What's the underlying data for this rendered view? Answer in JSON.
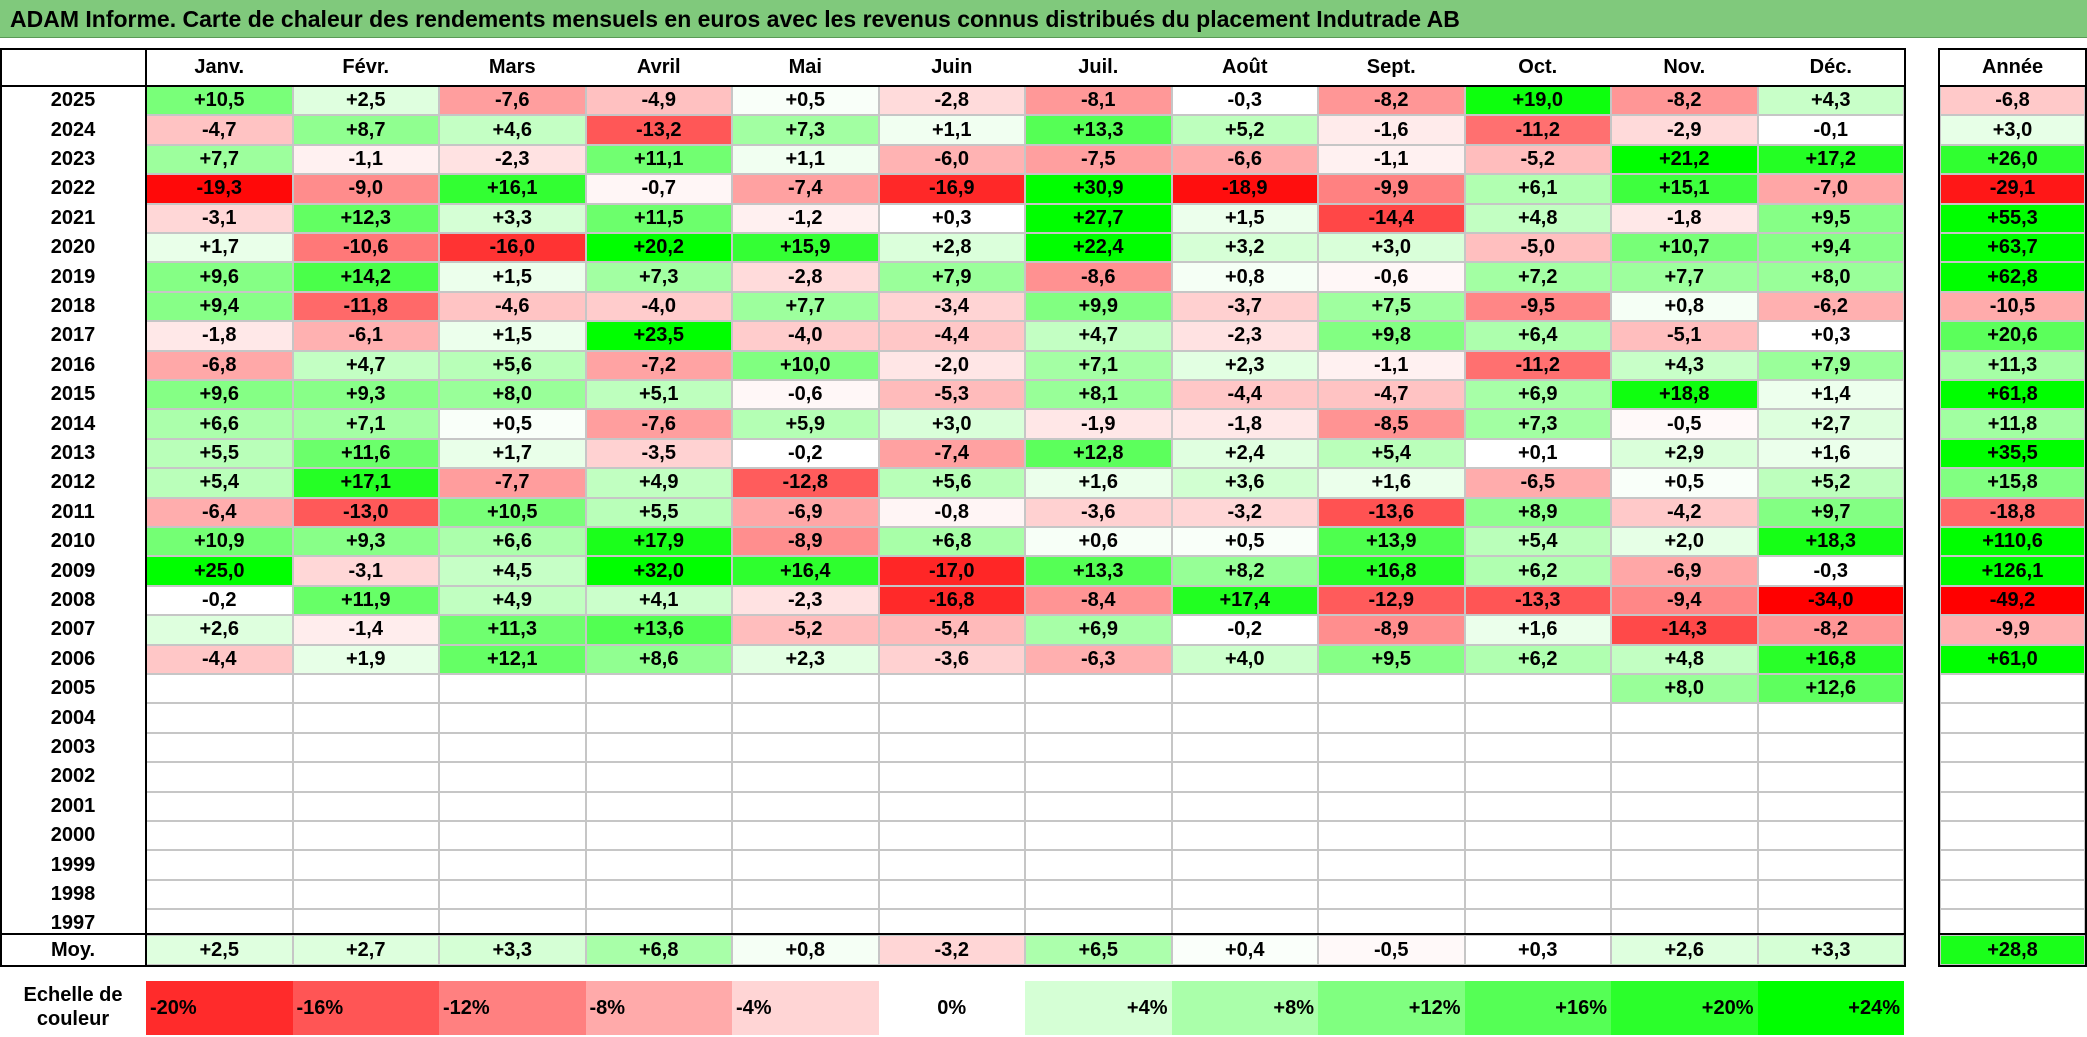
{
  "title": "ADAM Informe. Carte de chaleur des rendements mensuels en euros avec les revenus connus distribués du placement Indutrade AB",
  "chart_data": {
    "type": "heatmap",
    "title": "ADAM Informe. Carte de chaleur des rendements mensuels en euros avec les revenus connus distribués du placement Indutrade AB",
    "months": [
      "Janv.",
      "Févr.",
      "Mars",
      "Avril",
      "Mai",
      "Juin",
      "Juil.",
      "Août",
      "Sept.",
      "Oct.",
      "Nov.",
      "Déc."
    ],
    "annual_label": "Année",
    "rows": [
      {
        "year": "2025",
        "months": [
          "+10,5",
          "+2,5",
          "-7,6",
          "-4,9",
          "+0,5",
          "-2,8",
          "-8,1",
          "-0,3",
          "-8,2",
          "+19,0",
          "-8,2",
          "+4,3"
        ],
        "annual": "-6,8"
      },
      {
        "year": "2024",
        "months": [
          "-4,7",
          "+8,7",
          "+4,6",
          "-13,2",
          "+7,3",
          "+1,1",
          "+13,3",
          "+5,2",
          "-1,6",
          "-11,2",
          "-2,9",
          "-0,1"
        ],
        "annual": "+3,0"
      },
      {
        "year": "2023",
        "months": [
          "+7,7",
          "-1,1",
          "-2,3",
          "+11,1",
          "+1,1",
          "-6,0",
          "-7,5",
          "-6,6",
          "-1,1",
          "-5,2",
          "+21,2",
          "+17,2"
        ],
        "annual": "+26,0"
      },
      {
        "year": "2022",
        "months": [
          "-19,3",
          "-9,0",
          "+16,1",
          "-0,7",
          "-7,4",
          "-16,9",
          "+30,9",
          "-18,9",
          "-9,9",
          "+6,1",
          "+15,1",
          "-7,0"
        ],
        "annual": "-29,1"
      },
      {
        "year": "2021",
        "months": [
          "-3,1",
          "+12,3",
          "+3,3",
          "+11,5",
          "-1,2",
          "+0,3",
          "+27,7",
          "+1,5",
          "-14,4",
          "+4,8",
          "-1,8",
          "+9,5"
        ],
        "annual": "+55,3"
      },
      {
        "year": "2020",
        "months": [
          "+1,7",
          "-10,6",
          "-16,0",
          "+20,2",
          "+15,9",
          "+2,8",
          "+22,4",
          "+3,2",
          "+3,0",
          "-5,0",
          "+10,7",
          "+9,4"
        ],
        "annual": "+63,7"
      },
      {
        "year": "2019",
        "months": [
          "+9,6",
          "+14,2",
          "+1,5",
          "+7,3",
          "-2,8",
          "+7,9",
          "-8,6",
          "+0,8",
          "-0,6",
          "+7,2",
          "+7,7",
          "+8,0"
        ],
        "annual": "+62,8"
      },
      {
        "year": "2018",
        "months": [
          "+9,4",
          "-11,8",
          "-4,6",
          "-4,0",
          "+7,7",
          "-3,4",
          "+9,9",
          "-3,7",
          "+7,5",
          "-9,5",
          "+0,8",
          "-6,2"
        ],
        "annual": "-10,5"
      },
      {
        "year": "2017",
        "months": [
          "-1,8",
          "-6,1",
          "+1,5",
          "+23,5",
          "-4,0",
          "-4,4",
          "+4,7",
          "-2,3",
          "+9,8",
          "+6,4",
          "-5,1",
          "+0,3"
        ],
        "annual": "+20,6"
      },
      {
        "year": "2016",
        "months": [
          "-6,8",
          "+4,7",
          "+5,6",
          "-7,2",
          "+10,0",
          "-2,0",
          "+7,1",
          "+2,3",
          "-1,1",
          "-11,2",
          "+4,3",
          "+7,9"
        ],
        "annual": "+11,3"
      },
      {
        "year": "2015",
        "months": [
          "+9,6",
          "+9,3",
          "+8,0",
          "+5,1",
          "-0,6",
          "-5,3",
          "+8,1",
          "-4,4",
          "-4,7",
          "+6,9",
          "+18,8",
          "+1,4"
        ],
        "annual": "+61,8"
      },
      {
        "year": "2014",
        "months": [
          "+6,6",
          "+7,1",
          "+0,5",
          "-7,6",
          "+5,9",
          "+3,0",
          "-1,9",
          "-1,8",
          "-8,5",
          "+7,3",
          "-0,5",
          "+2,7"
        ],
        "annual": "+11,8"
      },
      {
        "year": "2013",
        "months": [
          "+5,5",
          "+11,6",
          "+1,7",
          "-3,5",
          "-0,2",
          "-7,4",
          "+12,8",
          "+2,4",
          "+5,4",
          "+0,1",
          "+2,9",
          "+1,6"
        ],
        "annual": "+35,5"
      },
      {
        "year": "2012",
        "months": [
          "+5,4",
          "+17,1",
          "-7,7",
          "+4,9",
          "-12,8",
          "+5,6",
          "+1,6",
          "+3,6",
          "+1,6",
          "-6,5",
          "+0,5",
          "+5,2"
        ],
        "annual": "+15,8"
      },
      {
        "year": "2011",
        "months": [
          "-6,4",
          "-13,0",
          "+10,5",
          "+5,5",
          "-6,9",
          "-0,8",
          "-3,6",
          "-3,2",
          "-13,6",
          "+8,9",
          "-4,2",
          "+9,7"
        ],
        "annual": "-18,8"
      },
      {
        "year": "2010",
        "months": [
          "+10,9",
          "+9,3",
          "+6,6",
          "+17,9",
          "-8,9",
          "+6,8",
          "+0,6",
          "+0,5",
          "+13,9",
          "+5,4",
          "+2,0",
          "+18,3"
        ],
        "annual": "+110,6"
      },
      {
        "year": "2009",
        "months": [
          "+25,0",
          "-3,1",
          "+4,5",
          "+32,0",
          "+16,4",
          "-17,0",
          "+13,3",
          "+8,2",
          "+16,8",
          "+6,2",
          "-6,9",
          "-0,3"
        ],
        "annual": "+126,1"
      },
      {
        "year": "2008",
        "months": [
          "-0,2",
          "+11,9",
          "+4,9",
          "+4,1",
          "-2,3",
          "-16,8",
          "-8,4",
          "+17,4",
          "-12,9",
          "-13,3",
          "-9,4",
          "-34,0"
        ],
        "annual": "-49,2"
      },
      {
        "year": "2007",
        "months": [
          "+2,6",
          "-1,4",
          "+11,3",
          "+13,6",
          "-5,2",
          "-5,4",
          "+6,9",
          "-0,2",
          "-8,9",
          "+1,6",
          "-14,3",
          "-8,2"
        ],
        "annual": "-9,9"
      },
      {
        "year": "2006",
        "months": [
          "-4,4",
          "+1,9",
          "+12,1",
          "+8,6",
          "+2,3",
          "-3,6",
          "-6,3",
          "+4,0",
          "+9,5",
          "+6,2",
          "+4,8",
          "+16,8"
        ],
        "annual": "+61,0"
      },
      {
        "year": "2005",
        "months": [
          "",
          "",
          "",
          "",
          "",
          "",
          "",
          "",
          "",
          "",
          "+8,0",
          "+12,6"
        ],
        "annual": ""
      },
      {
        "year": "2004",
        "months": [
          "",
          "",
          "",
          "",
          "",
          "",
          "",
          "",
          "",
          "",
          "",
          ""
        ],
        "annual": ""
      },
      {
        "year": "2003",
        "months": [
          "",
          "",
          "",
          "",
          "",
          "",
          "",
          "",
          "",
          "",
          "",
          ""
        ],
        "annual": ""
      },
      {
        "year": "2002",
        "months": [
          "",
          "",
          "",
          "",
          "",
          "",
          "",
          "",
          "",
          "",
          "",
          ""
        ],
        "annual": ""
      },
      {
        "year": "2001",
        "months": [
          "",
          "",
          "",
          "",
          "",
          "",
          "",
          "",
          "",
          "",
          "",
          ""
        ],
        "annual": ""
      },
      {
        "year": "2000",
        "months": [
          "",
          "",
          "",
          "",
          "",
          "",
          "",
          "",
          "",
          "",
          "",
          ""
        ],
        "annual": ""
      },
      {
        "year": "1999",
        "months": [
          "",
          "",
          "",
          "",
          "",
          "",
          "",
          "",
          "",
          "",
          "",
          ""
        ],
        "annual": ""
      },
      {
        "year": "1998",
        "months": [
          "",
          "",
          "",
          "",
          "",
          "",
          "",
          "",
          "",
          "",
          "",
          ""
        ],
        "annual": ""
      },
      {
        "year": "1997",
        "months": [
          "",
          "",
          "",
          "",
          "",
          "",
          "",
          "",
          "",
          "",
          "",
          ""
        ],
        "annual": ""
      }
    ],
    "average": {
      "label": "Moy.",
      "months": [
        "+2,5",
        "+2,7",
        "+3,3",
        "+6,8",
        "+0,8",
        "-3,2",
        "+6,5",
        "+0,4",
        "-0,5",
        "+0,3",
        "+2,6",
        "+3,3"
      ],
      "annual": "+28,8"
    },
    "color_scale": {
      "label_line1": "Echelle de",
      "label_line2": "couleur",
      "steps": [
        "-20%",
        "-16%",
        "-12%",
        "-8%",
        "-4%",
        "0%",
        "+4%",
        "+8%",
        "+12%",
        "+16%",
        "+20%",
        "+24%"
      ],
      "negative_color": "#ff0000",
      "neutral_color": "#ffffff",
      "positive_color": "#00ff00"
    }
  }
}
